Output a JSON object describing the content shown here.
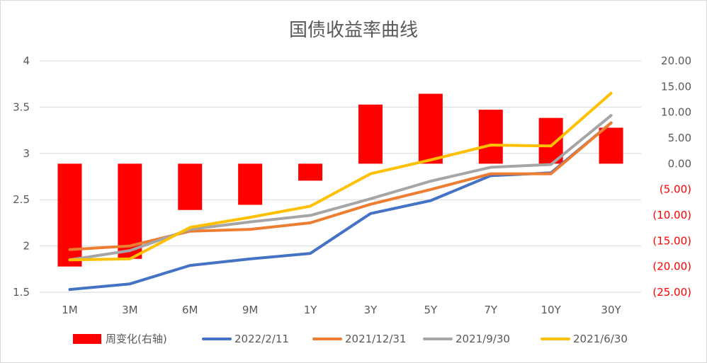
{
  "chart_data": {
    "type": "bar+line",
    "title": "国债收益率曲线",
    "categories": [
      "1M",
      "3M",
      "6M",
      "9M",
      "1Y",
      "3Y",
      "5Y",
      "7Y",
      "10Y",
      "30Y"
    ],
    "left_axis": {
      "ylim": [
        1.5,
        4
      ],
      "ticks": [
        "1.5",
        "2",
        "2.5",
        "3",
        "3.5",
        "4"
      ]
    },
    "right_axis": {
      "ylim": [
        -25,
        20
      ],
      "ticks": [
        "(25.00)",
        "(20.00)",
        "(15.00)",
        "(10.00)",
        "(5.00)",
        "0.00",
        "5.00",
        "10.00",
        "15.00",
        "20.00"
      ]
    },
    "grid": true,
    "legend_position": "bottom",
    "bars": {
      "name": "周变化(右轴)",
      "axis": "right",
      "color": "#ff0000",
      "values": [
        -20.0,
        -18.5,
        -9.0,
        -8.0,
        -3.3,
        11.5,
        13.6,
        10.5,
        8.9,
        7.0
      ]
    },
    "series": [
      {
        "name": "2022/2/11",
        "color": "#4472c4",
        "values": [
          1.53,
          1.59,
          1.79,
          1.86,
          1.92,
          2.35,
          2.49,
          2.76,
          2.79,
          3.33
        ]
      },
      {
        "name": "2021/12/31",
        "color": "#ed7d31",
        "values": [
          1.96,
          2.0,
          2.16,
          2.18,
          2.25,
          2.45,
          2.61,
          2.78,
          2.78,
          3.33
        ]
      },
      {
        "name": "2021/9/30",
        "color": "#a5a5a5",
        "values": [
          1.85,
          1.95,
          2.18,
          2.26,
          2.33,
          2.51,
          2.7,
          2.85,
          2.88,
          3.41
        ]
      },
      {
        "name": "2021/6/30",
        "color": "#ffc000",
        "values": [
          1.85,
          1.86,
          2.2,
          2.31,
          2.43,
          2.78,
          2.93,
          3.09,
          3.08,
          3.65
        ]
      }
    ]
  }
}
